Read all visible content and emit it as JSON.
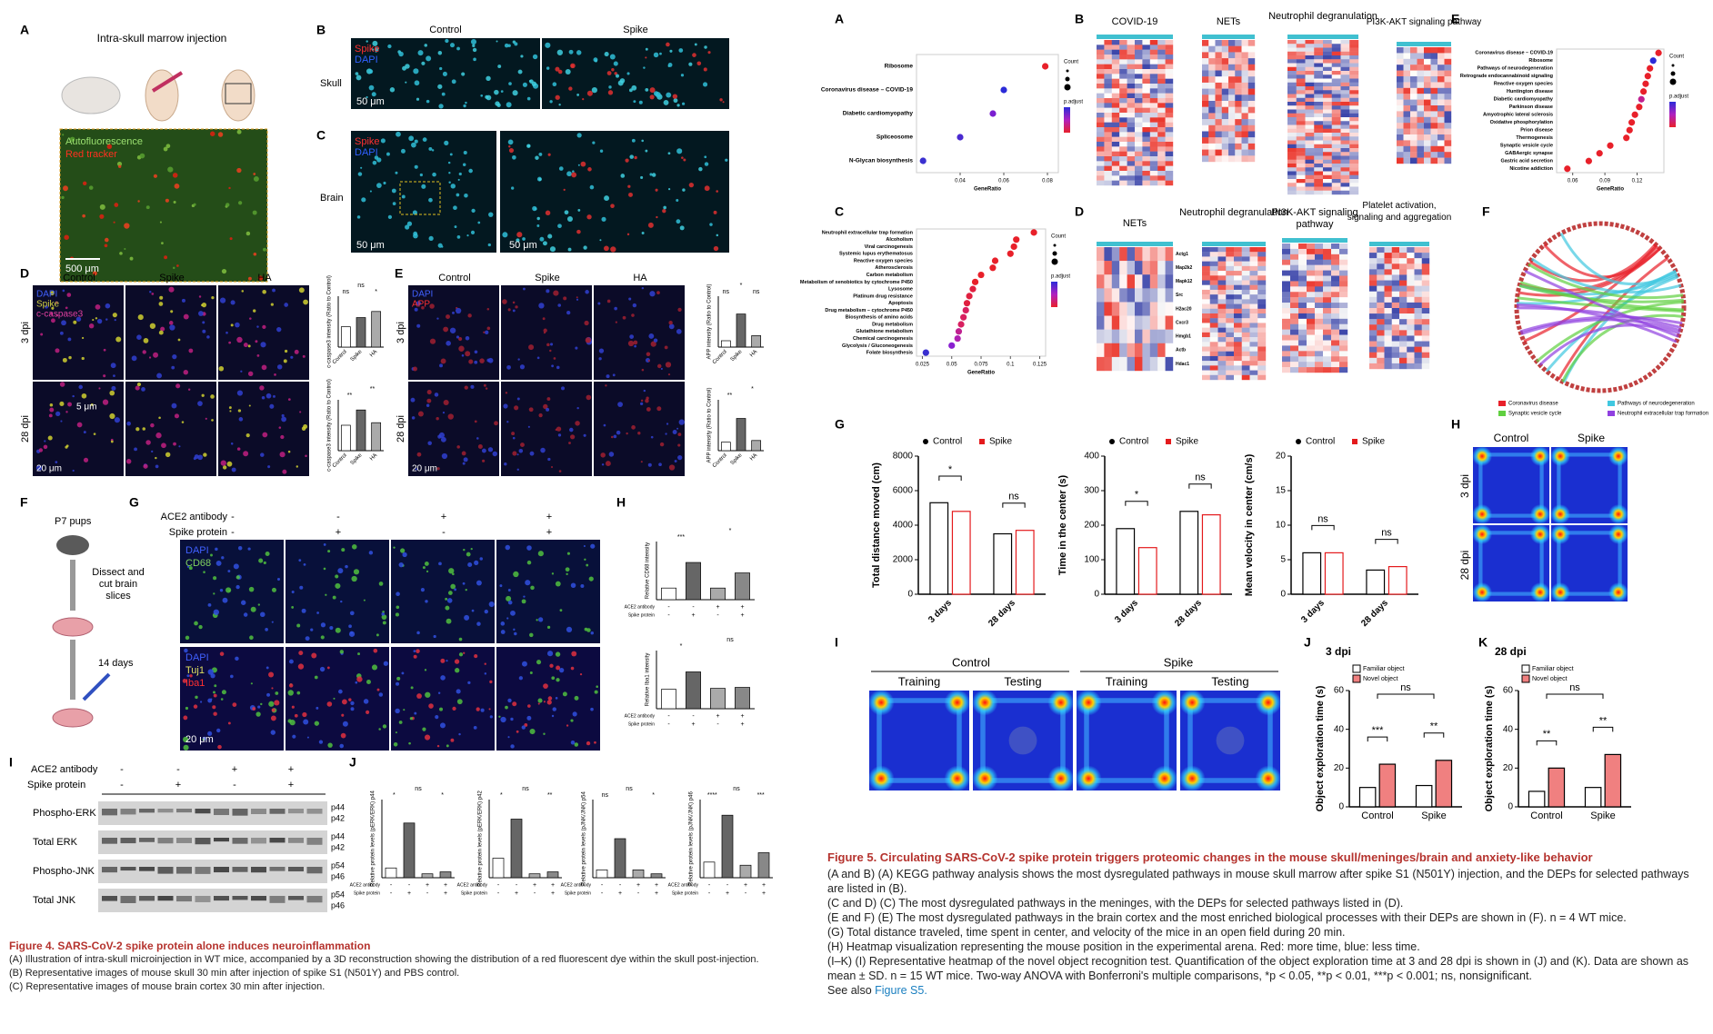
{
  "figure4": {
    "panel_labels": [
      "A",
      "B",
      "C",
      "D",
      "E",
      "F",
      "G",
      "H",
      "I",
      "J"
    ],
    "a": {
      "title": "Intra-skull marrow injection",
      "overlay": [
        "Autofluorescence",
        "Red tracker"
      ],
      "scale": "500 μm"
    },
    "b": {
      "columns": [
        "Control",
        "Spike"
      ],
      "row": "Skull",
      "overlay": [
        "Spike",
        "DAPI"
      ],
      "scale": "50 μm"
    },
    "c": {
      "row": "Brain",
      "overlay": [
        "Spike",
        "DAPI"
      ],
      "scales": [
        "50 μm",
        "50 μm"
      ]
    },
    "d": {
      "columns": [
        "Control",
        "Spike",
        "HA"
      ],
      "rows": [
        "3 dpi",
        "28 dpi"
      ],
      "overlay": [
        "DAPI",
        "Spike",
        "c-caspase3"
      ],
      "scales": [
        "5 μm",
        "20 μm"
      ],
      "charts": [
        {
          "ylabel": "c-caspase3 intensity (Ratio to Control)",
          "values": [
            1,
            1.45,
            1.75
          ],
          "ylim": [
            0,
            2.5
          ],
          "significance": [
            "ns",
            "ns",
            "*"
          ]
        },
        {
          "ylabel": "c-caspase3 intensity (Ratio to Control)",
          "values": [
            1,
            1.6,
            1.1
          ],
          "ylim": [
            0,
            2
          ],
          "significance": [
            "**",
            "**"
          ]
        }
      ]
    },
    "e": {
      "columns": [
        "Control",
        "Spike",
        "HA"
      ],
      "rows": [
        "3 dpi",
        "28 dpi"
      ],
      "overlay": [
        "DAPI",
        "APP"
      ],
      "scale": "20 μm",
      "charts": [
        {
          "ylabel": "APP intensity (Ratio to Control)",
          "values": [
            1,
            5.2,
            1.8
          ],
          "ylim": [
            0,
            8
          ],
          "significance": [
            "ns",
            "*",
            "ns"
          ]
        },
        {
          "ylabel": "APP intensity (Ratio to Control)",
          "values": [
            1,
            3.8,
            1.2
          ],
          "ylim": [
            0,
            6
          ],
          "significance": [
            "**",
            "*"
          ]
        }
      ]
    },
    "f": {
      "steps": [
        "P7 pups",
        "Dissect and cut brain slices",
        "14 days"
      ]
    },
    "g": {
      "row_labels": [
        "ACE2 antibody",
        "Spike protein"
      ],
      "signs": [
        [
          "-",
          "-",
          "+",
          "+"
        ],
        [
          "-",
          "+",
          "-",
          "+"
        ]
      ],
      "overlays": [
        [
          "DAPI",
          "CD68"
        ],
        [
          "DAPI",
          "Tuj1",
          "Iba1"
        ]
      ],
      "scale": "20 μm"
    },
    "h": {
      "row_labels": [
        "ACE2 antibody",
        "Spike protein"
      ],
      "signs": [
        [
          "-",
          "-",
          "+",
          "+"
        ],
        [
          "-",
          "+",
          "-",
          "+"
        ]
      ],
      "charts": [
        {
          "ylabel": "Relative CD68 intensity",
          "values": [
            1,
            3.2,
            1,
            2.3
          ],
          "ylim": [
            0,
            5
          ],
          "significance": [
            "***",
            "*"
          ]
        },
        {
          "ylabel": "Relative Iba1 intensity",
          "values": [
            1,
            1.9,
            1.05,
            1.1
          ],
          "ylim": [
            0,
            3
          ],
          "significance": [
            "*",
            "ns"
          ]
        }
      ]
    },
    "i": {
      "row_labels": [
        "ACE2 antibody",
        "Spike protein"
      ],
      "signs": [
        [
          "-",
          "-",
          "+",
          "+"
        ],
        [
          "-",
          "+",
          "-",
          "+"
        ]
      ],
      "blots": [
        {
          "name": "Phospho-ERK",
          "kda": [
            "p44",
            "p42"
          ]
        },
        {
          "name": "Total ERK",
          "kda": [
            "p44",
            "p42"
          ]
        },
        {
          "name": "Phospho-JNK",
          "kda": [
            "p54",
            "p46"
          ]
        },
        {
          "name": "Total JNK",
          "kda": [
            "p54",
            "p46"
          ]
        }
      ]
    },
    "j": {
      "row_labels": [
        "ACE2 antibody",
        "Spike protein"
      ],
      "signs": [
        [
          "-",
          "-",
          "+",
          "+"
        ],
        [
          "-",
          "+",
          "-",
          "+"
        ]
      ],
      "charts": [
        {
          "ylabel": "Relative protein levels (pERK/ERK) p44",
          "values": [
            0.05,
            0.28,
            0.02,
            0.03
          ],
          "ylim": [
            0,
            0.4
          ],
          "significance": [
            "*",
            "ns",
            "*"
          ]
        },
        {
          "ylabel": "Relative protein levels (pERK/ERK) p42",
          "values": [
            0.05,
            0.15,
            0.01,
            0.015
          ],
          "ylim": [
            0,
            0.2
          ],
          "significance": [
            "*",
            "ns",
            "**"
          ]
        },
        {
          "ylabel": "Relative protein levels (pJNK/JNK) p54",
          "values": [
            0.02,
            0.1,
            0.02,
            0.01
          ],
          "ylim": [
            0,
            0.2
          ],
          "significance": [
            "ns",
            "ns",
            "*"
          ]
        },
        {
          "ylabel": "Relative protein levels (pJNK/JNK) p46",
          "values": [
            0.05,
            0.2,
            0.04,
            0.08
          ],
          "ylim": [
            0,
            0.25
          ],
          "significance": [
            "****",
            "ns",
            "***"
          ]
        }
      ]
    },
    "caption": {
      "title": "Figure 4. SARS-CoV-2 spike protein alone induces neuroinflammation",
      "lines": [
        "(A) Illustration of intra-skull microinjection in WT mice, accompanied by a 3D reconstruction showing the distribution of a red fluorescent dye within the skull post-injection.",
        "(B) Representative images of mouse skull 30 min after injection of spike S1 (N501Y) and PBS control.",
        "(C) Representative images of mouse brain cortex 30 min after injection."
      ]
    }
  },
  "figure5": {
    "panel_labels": [
      "A",
      "B",
      "C",
      "D",
      "E",
      "F",
      "G",
      "H",
      "I",
      "J",
      "K"
    ],
    "a": {
      "terms": [
        "Ribosome",
        "Coronavirus disease – COVID-19",
        "Diabetic cardiomyopathy",
        "Spliceosome",
        "N-Glycan biosynthesis"
      ],
      "gene_ratio": [
        0.079,
        0.06,
        0.055,
        0.04,
        0.023
      ],
      "colors": [
        "#e8202a",
        "#2b2bd8",
        "#7a1fd0",
        "#4a2ad0",
        "#3a30d0"
      ],
      "xlim": [
        0.02,
        0.085
      ],
      "xticks": [
        0.04,
        0.06,
        0.08
      ],
      "xlabel": "GeneRatio",
      "legend_titles": [
        "Count",
        "p.adjust"
      ]
    },
    "b": {
      "titles": [
        "COVID-19",
        "NETs",
        "Neutrophil degranulation",
        "PI3K-AKT signaling pathway"
      ]
    },
    "c": {
      "terms": [
        "Neutrophil extracellular trap formation",
        "Alcoholism",
        "Viral carcinogenesis",
        "Systemic lupus erythematosus",
        "Reactive oxygen species",
        "Atherosclerosis",
        "Carbon metabolism",
        "Metabolism of xenobiotics by cytochrome P450",
        "Lysosome",
        "Platinum drug resistance",
        "Apoptosis",
        "Drug metabolism – cytochrome P450",
        "Biosynthesis of amino acids",
        "Drug metabolism",
        "Glutathione metabolism",
        "Chemical carcinogenesis",
        "Glycolysis / Gluconeogenesis",
        "Folate biosynthesis"
      ],
      "gene_ratio": [
        0.12,
        0.105,
        0.103,
        0.1,
        0.087,
        0.085,
        0.075,
        0.07,
        0.068,
        0.065,
        0.063,
        0.062,
        0.06,
        0.058,
        0.056,
        0.055,
        0.05,
        0.028
      ],
      "colors": [
        "#e8202a",
        "#e8202a",
        "#e8202a",
        "#e8202a",
        "#e8202a",
        "#e8202a",
        "#e8202a",
        "#e8202a",
        "#e02040",
        "#e02040",
        "#e02040",
        "#d82060",
        "#d82060",
        "#d82060",
        "#c02090",
        "#b020b0",
        "#8a20d0",
        "#3a30d0"
      ],
      "xlim": [
        0.02,
        0.13
      ],
      "xticks": [
        0.025,
        0.05,
        0.075,
        0.1,
        0.125
      ],
      "xlabel": "GeneRatio",
      "legend_titles": [
        "Count",
        "p.adjust"
      ]
    },
    "d": {
      "titles": [
        "NETs",
        "Neutrophil degranulation",
        "PI3K-AKT signaling pathway",
        "Platelet activation, signaling and aggregation"
      ],
      "nets_genes": [
        "Actg1",
        "Map2k2",
        "Mapk12",
        "Src",
        "H2ac20",
        "Cxcr3",
        "Hmgb1",
        "Actb",
        "Hdac1"
      ]
    },
    "e": {
      "terms": [
        "Coronavirus disease – COVID-19",
        "Ribosome",
        "Pathways of neurodegeneration",
        "Retrograde endocannabinoid signaling",
        "Reactive oxygen species",
        "Huntington disease",
        "Diabetic cardiomyopathy",
        "Parkinson disease",
        "Amyotrophic lateral sclerosis",
        "Oxidative phosphorylation",
        "Prion disease",
        "Thermogenesis",
        "Synaptic vesicle cycle",
        "GABAergic synapse",
        "Gastric acid secretion",
        "Nicotine addiction"
      ],
      "gene_ratio": [
        0.14,
        0.135,
        0.132,
        0.13,
        0.128,
        0.126,
        0.124,
        0.122,
        0.118,
        0.115,
        0.113,
        0.11,
        0.095,
        0.085,
        0.075,
        0.055
      ],
      "colors": [
        "#e8202a",
        "#2b2bd8",
        "#e8202a",
        "#e8202a",
        "#e8202a",
        "#e8202a",
        "#c02090",
        "#e8202a",
        "#e8202a",
        "#e8202a",
        "#e8202a",
        "#e8202a",
        "#e8202a",
        "#e8202a",
        "#e8202a",
        "#e8202a"
      ],
      "xlim": [
        0.045,
        0.145
      ],
      "xticks": [
        0.06,
        0.09,
        0.12
      ],
      "xlabel": "GeneRatio",
      "legend_titles": [
        "Count",
        "p.adjust"
      ]
    },
    "f": {
      "legend": [
        {
          "name": "Coronavirus disease",
          "color": "#e8202a"
        },
        {
          "name": "Pathways of neurodegeneration",
          "color": "#40c8e0"
        },
        {
          "name": "Synaptic vesicle cycle",
          "color": "#60d040"
        },
        {
          "name": "Neutrophil extracellular trap formation",
          "color": "#9040e0"
        }
      ]
    },
    "g": {
      "charts": [
        {
          "ylabel": "Total distance moved (cm)",
          "categories": [
            "3 days",
            "28 days"
          ],
          "series": [
            {
              "name": "Control",
              "color": "#000000",
              "values": [
                5300,
                3500
              ]
            },
            {
              "name": "Spike",
              "color": "#e41a1c",
              "values": [
                4800,
                3700
              ]
            }
          ],
          "ylim": [
            0,
            8000
          ],
          "yticks": [
            0,
            2000,
            4000,
            6000,
            8000
          ],
          "significance": [
            "*",
            "ns"
          ]
        },
        {
          "ylabel": "Time in the center (s)",
          "categories": [
            "3 days",
            "28 days"
          ],
          "series": [
            {
              "name": "Control",
              "color": "#000000",
              "values": [
                190,
                240
              ]
            },
            {
              "name": "Spike",
              "color": "#e41a1c",
              "values": [
                135,
                230
              ]
            }
          ],
          "ylim": [
            0,
            400
          ],
          "yticks": [
            0,
            100,
            200,
            300,
            400
          ],
          "significance": [
            "*",
            "ns"
          ]
        },
        {
          "ylabel": "Mean velocity in center (cm/s)",
          "categories": [
            "3 days",
            "28 days"
          ],
          "series": [
            {
              "name": "Control",
              "color": "#000000",
              "values": [
                6,
                3.5
              ]
            },
            {
              "name": "Spike",
              "color": "#e41a1c",
              "values": [
                6,
                4
              ]
            }
          ],
          "ylim": [
            0,
            20
          ],
          "yticks": [
            0,
            5,
            10,
            15,
            20
          ],
          "significance": [
            "ns",
            "ns"
          ]
        }
      ]
    },
    "h": {
      "columns": [
        "Control",
        "Spike"
      ],
      "rows": [
        "3 dpi",
        "28 dpi"
      ]
    },
    "i": {
      "groups": [
        "Control",
        "Spike"
      ],
      "phases": [
        "Training",
        "Testing",
        "Training",
        "Testing"
      ]
    },
    "j": {
      "title": "3 dpi",
      "ylabel": "Object exploration time (s)",
      "categories": [
        "Control",
        "Spike"
      ],
      "series": [
        {
          "name": "Familiar object",
          "color": "#ffffff",
          "values": [
            10,
            11
          ]
        },
        {
          "name": "Novel object",
          "color": "#f08080",
          "values": [
            22,
            24
          ]
        }
      ],
      "ylim": [
        0,
        60
      ],
      "yticks": [
        0,
        20,
        40,
        60
      ],
      "significance": [
        "***",
        "**",
        "ns"
      ]
    },
    "k": {
      "title": "28 dpi",
      "ylabel": "Object exploration time (s)",
      "categories": [
        "Control",
        "Spike"
      ],
      "series": [
        {
          "name": "Familiar object",
          "color": "#ffffff",
          "values": [
            8,
            10
          ]
        },
        {
          "name": "Novel object",
          "color": "#f08080",
          "values": [
            20,
            27
          ]
        }
      ],
      "ylim": [
        0,
        60
      ],
      "yticks": [
        0,
        20,
        40,
        60
      ],
      "significance": [
        "**",
        "**",
        "ns"
      ]
    },
    "caption": {
      "title": "Figure 5. Circulating SARS-CoV-2 spike protein triggers proteomic changes in the mouse skull/meninges/brain and anxiety-like behavior",
      "lines": [
        "(A and B) (A) KEGG pathway analysis shows the most dysregulated pathways in mouse skull marrow after spike S1 (N501Y) injection, and the DEPs for selected pathways are listed in (B).",
        "(C and D) (C) The most dysregulated pathways in the meninges, with the DEPs for selected pathways listed in (D).",
        "(E and F) (E) The most dysregulated pathways in the brain cortex and the most enriched biological processes with their DEPs are shown in (F). n = 4 WT mice.",
        "(G) Total distance traveled, time spent in center, and velocity of the mice in an open field during 20 min.",
        "(H) Heatmap visualization representing the mouse position in the experimental arena. Red: more time, blue: less time.",
        "(I–K) (I) Representative heatmap of the novel object recognition test. Quantification of the object exploration time at 3 and 28 dpi is shown in (J) and (K). Data are shown as mean ± SD. n = 15 WT mice. Two-way ANOVA with Bonferroni's multiple comparisons, *p < 0.05, **p < 0.01, ***p < 0.001; ns, nonsignificant."
      ],
      "see_also": "See also",
      "link": "Figure S5."
    }
  }
}
